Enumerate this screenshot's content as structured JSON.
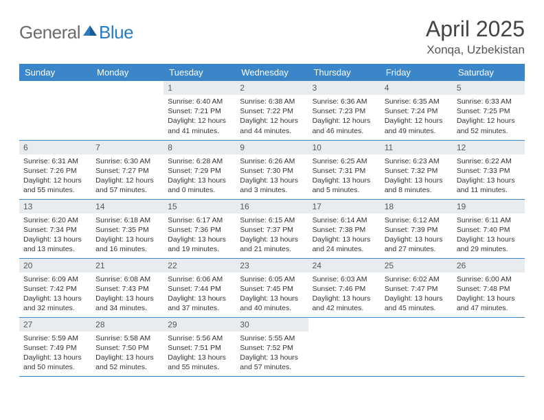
{
  "logo": {
    "text1": "General",
    "text2": "Blue"
  },
  "title": "April 2025",
  "subtitle": "Xonqa, Uzbekistan",
  "colors": {
    "header_bg": "#3a86c8",
    "header_text": "#ffffff",
    "daynum_bg": "#e9ecef",
    "row_border": "#3a86c8",
    "logo_gray": "#6a6a6a",
    "logo_blue": "#2a7bbf"
  },
  "weekdays": [
    "Sunday",
    "Monday",
    "Tuesday",
    "Wednesday",
    "Thursday",
    "Friday",
    "Saturday"
  ],
  "weeks": [
    [
      null,
      null,
      {
        "n": "1",
        "sunrise": "6:40 AM",
        "sunset": "7:21 PM",
        "daylight": "12 hours and 41 minutes."
      },
      {
        "n": "2",
        "sunrise": "6:38 AM",
        "sunset": "7:22 PM",
        "daylight": "12 hours and 44 minutes."
      },
      {
        "n": "3",
        "sunrise": "6:36 AM",
        "sunset": "7:23 PM",
        "daylight": "12 hours and 46 minutes."
      },
      {
        "n": "4",
        "sunrise": "6:35 AM",
        "sunset": "7:24 PM",
        "daylight": "12 hours and 49 minutes."
      },
      {
        "n": "5",
        "sunrise": "6:33 AM",
        "sunset": "7:25 PM",
        "daylight": "12 hours and 52 minutes."
      }
    ],
    [
      {
        "n": "6",
        "sunrise": "6:31 AM",
        "sunset": "7:26 PM",
        "daylight": "12 hours and 55 minutes."
      },
      {
        "n": "7",
        "sunrise": "6:30 AM",
        "sunset": "7:27 PM",
        "daylight": "12 hours and 57 minutes."
      },
      {
        "n": "8",
        "sunrise": "6:28 AM",
        "sunset": "7:29 PM",
        "daylight": "13 hours and 0 minutes."
      },
      {
        "n": "9",
        "sunrise": "6:26 AM",
        "sunset": "7:30 PM",
        "daylight": "13 hours and 3 minutes."
      },
      {
        "n": "10",
        "sunrise": "6:25 AM",
        "sunset": "7:31 PM",
        "daylight": "13 hours and 5 minutes."
      },
      {
        "n": "11",
        "sunrise": "6:23 AM",
        "sunset": "7:32 PM",
        "daylight": "13 hours and 8 minutes."
      },
      {
        "n": "12",
        "sunrise": "6:22 AM",
        "sunset": "7:33 PM",
        "daylight": "13 hours and 11 minutes."
      }
    ],
    [
      {
        "n": "13",
        "sunrise": "6:20 AM",
        "sunset": "7:34 PM",
        "daylight": "13 hours and 13 minutes."
      },
      {
        "n": "14",
        "sunrise": "6:18 AM",
        "sunset": "7:35 PM",
        "daylight": "13 hours and 16 minutes."
      },
      {
        "n": "15",
        "sunrise": "6:17 AM",
        "sunset": "7:36 PM",
        "daylight": "13 hours and 19 minutes."
      },
      {
        "n": "16",
        "sunrise": "6:15 AM",
        "sunset": "7:37 PM",
        "daylight": "13 hours and 21 minutes."
      },
      {
        "n": "17",
        "sunrise": "6:14 AM",
        "sunset": "7:38 PM",
        "daylight": "13 hours and 24 minutes."
      },
      {
        "n": "18",
        "sunrise": "6:12 AM",
        "sunset": "7:39 PM",
        "daylight": "13 hours and 27 minutes."
      },
      {
        "n": "19",
        "sunrise": "6:11 AM",
        "sunset": "7:40 PM",
        "daylight": "13 hours and 29 minutes."
      }
    ],
    [
      {
        "n": "20",
        "sunrise": "6:09 AM",
        "sunset": "7:42 PM",
        "daylight": "13 hours and 32 minutes."
      },
      {
        "n": "21",
        "sunrise": "6:08 AM",
        "sunset": "7:43 PM",
        "daylight": "13 hours and 34 minutes."
      },
      {
        "n": "22",
        "sunrise": "6:06 AM",
        "sunset": "7:44 PM",
        "daylight": "13 hours and 37 minutes."
      },
      {
        "n": "23",
        "sunrise": "6:05 AM",
        "sunset": "7:45 PM",
        "daylight": "13 hours and 40 minutes."
      },
      {
        "n": "24",
        "sunrise": "6:03 AM",
        "sunset": "7:46 PM",
        "daylight": "13 hours and 42 minutes."
      },
      {
        "n": "25",
        "sunrise": "6:02 AM",
        "sunset": "7:47 PM",
        "daylight": "13 hours and 45 minutes."
      },
      {
        "n": "26",
        "sunrise": "6:00 AM",
        "sunset": "7:48 PM",
        "daylight": "13 hours and 47 minutes."
      }
    ],
    [
      {
        "n": "27",
        "sunrise": "5:59 AM",
        "sunset": "7:49 PM",
        "daylight": "13 hours and 50 minutes."
      },
      {
        "n": "28",
        "sunrise": "5:58 AM",
        "sunset": "7:50 PM",
        "daylight": "13 hours and 52 minutes."
      },
      {
        "n": "29",
        "sunrise": "5:56 AM",
        "sunset": "7:51 PM",
        "daylight": "13 hours and 55 minutes."
      },
      {
        "n": "30",
        "sunrise": "5:55 AM",
        "sunset": "7:52 PM",
        "daylight": "13 hours and 57 minutes."
      },
      null,
      null,
      null
    ]
  ],
  "labels": {
    "sunrise": "Sunrise: ",
    "sunset": "Sunset: ",
    "daylight": "Daylight: "
  }
}
